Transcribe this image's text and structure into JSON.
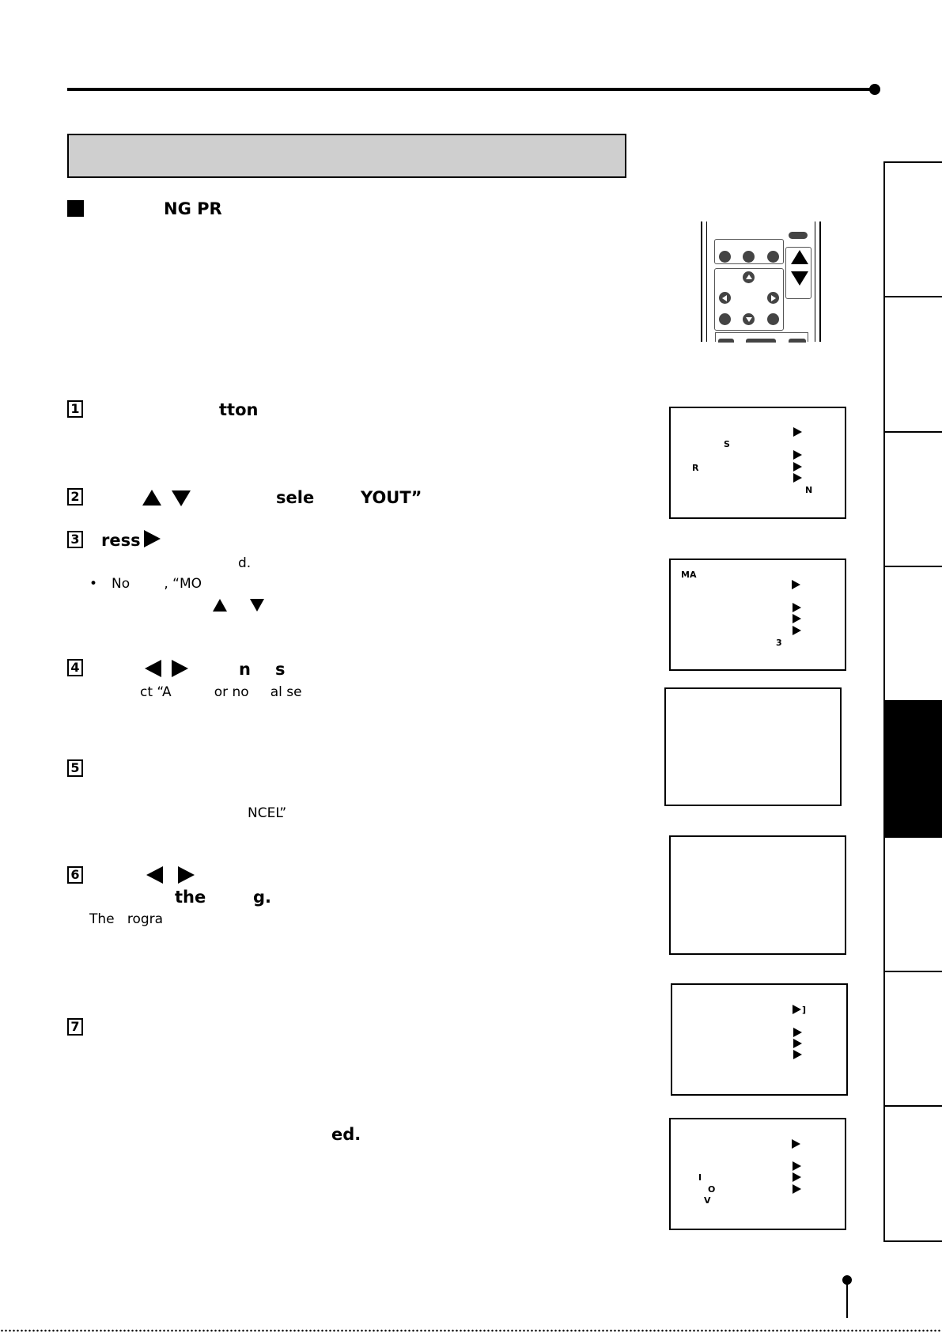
{
  "section": {
    "title": "NG PR"
  },
  "steps": {
    "s1": {
      "num": "1",
      "text": "tton"
    },
    "s2": {
      "num": "2",
      "text_a": "sele",
      "text_b": "YOUT”"
    },
    "s3": {
      "num": "3",
      "text": "ress",
      "note": "d.",
      "bullet": "•",
      "bullet_text": "No        , “MO"
    },
    "s4": {
      "num": "4",
      "text_a": "n",
      "text_b": "s",
      "note": "ct “A          or no     al se"
    },
    "s5": {
      "num": "5",
      "note": "NCEL”"
    },
    "s6": {
      "num": "6",
      "text_a": "the",
      "text_b": "g.",
      "note": "The   rogra"
    },
    "s7": {
      "num": "7",
      "text": "ed."
    }
  },
  "screens": {
    "sc1": {
      "labels": [
        "S",
        "R",
        "N"
      ]
    },
    "sc2": {
      "labels": [
        "MA",
        "3"
      ]
    },
    "sc5": {
      "labels": [
        "]"
      ]
    },
    "sc6": {
      "labels": [
        "I",
        "O",
        "V"
      ]
    }
  }
}
